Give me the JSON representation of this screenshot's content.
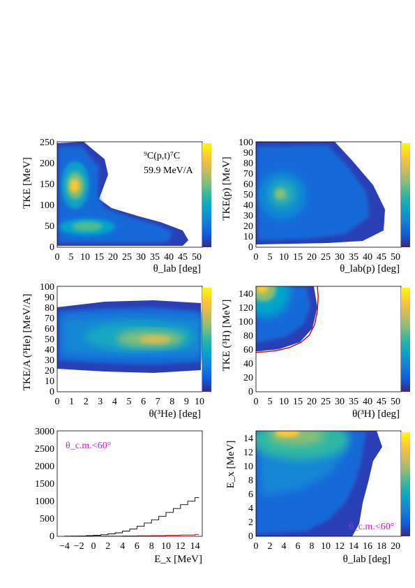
{
  "chart_data": [
    {
      "type": "heatmap",
      "panel": "a",
      "xlabel": "θ_lab [deg]",
      "ylabel": "TKE [MeV]",
      "xlim": [
        0,
        52
      ],
      "ylim": [
        0,
        250
      ],
      "x_ticks": [
        "0",
        "5",
        "10",
        "15",
        "20",
        "25",
        "30",
        "35",
        "40",
        "45",
        "50"
      ],
      "y_ticks": [
        "0",
        "50",
        "100",
        "150",
        "200",
        "250"
      ],
      "annotation_reaction": "⁹C(p,t)⁷C",
      "annotation_energy": "59.9 MeV/A",
      "colorbar": true,
      "hotspots": [
        {
          "x": 6,
          "y": 145,
          "intensity": 1.0
        },
        {
          "x": 10,
          "y": 48,
          "intensity": 0.8
        }
      ]
    },
    {
      "type": "heatmap",
      "panel": "b",
      "xlabel": "θ_lab(p) [deg]",
      "ylabel": "TKE(p) [MeV]",
      "xlim": [
        0,
        52
      ],
      "ylim": [
        0,
        100
      ],
      "x_ticks": [
        "0",
        "5",
        "10",
        "15",
        "20",
        "25",
        "30",
        "35",
        "40",
        "45",
        "50"
      ],
      "y_ticks": [
        "0",
        "10",
        "20",
        "30",
        "40",
        "50",
        "60",
        "70",
        "80",
        "90",
        "100"
      ],
      "colorbar": true,
      "hotspots": [
        {
          "x": 8,
          "y": 50,
          "intensity": 1.0
        }
      ]
    },
    {
      "type": "heatmap",
      "panel": "c",
      "xlabel": "θ(³He) [deg]",
      "ylabel": "TKE/A (³He) [MeV/A]",
      "xlim": [
        0,
        10
      ],
      "ylim": [
        0,
        100
      ],
      "x_ticks": [
        "0",
        "1",
        "2",
        "3",
        "4",
        "5",
        "6",
        "7",
        "8",
        "9",
        "10"
      ],
      "y_ticks": [
        "0",
        "10",
        "20",
        "30",
        "40",
        "50",
        "60",
        "70",
        "80",
        "90",
        "100"
      ],
      "colorbar": true,
      "hotspots": [
        {
          "x": 6.5,
          "y": 50,
          "intensity": 1.0
        }
      ]
    },
    {
      "type": "heatmap",
      "panel": "d",
      "xlabel": "θ(³H) [deg]",
      "ylabel": "TKE (³H) [MeV]",
      "xlim": [
        0,
        52
      ],
      "ylim": [
        0,
        150
      ],
      "x_ticks": [
        "0",
        "5",
        "10",
        "15",
        "20",
        "25",
        "30",
        "35",
        "40",
        "45",
        "50"
      ],
      "y_ticks": [
        "0",
        "20",
        "40",
        "60",
        "80",
        "100",
        "120",
        "140"
      ],
      "colorbar": true,
      "hotspots": [
        {
          "x": 3,
          "y": 145,
          "intensity": 1.0
        }
      ],
      "kinematic_curve": [
        [
          0,
          56
        ],
        [
          4,
          57
        ],
        [
          8,
          59
        ],
        [
          12,
          63
        ],
        [
          16,
          70
        ],
        [
          19,
          80
        ],
        [
          21,
          95
        ],
        [
          22,
          115
        ],
        [
          22.3,
          135
        ],
        [
          22,
          150
        ]
      ]
    },
    {
      "type": "line",
      "panel": "e",
      "xlabel": "E_x [MeV]",
      "ylabel": "",
      "xlim": [
        -5,
        15
      ],
      "ylim": [
        0,
        3000
      ],
      "x_ticks": [
        "−4",
        "−2",
        "0",
        "2",
        "4",
        "6",
        "8",
        "10",
        "12",
        "14"
      ],
      "y_ticks": [
        "0",
        "500",
        "1000",
        "1500",
        "2000",
        "2500",
        "3000"
      ],
      "annotation": "θ_c.m.<60°",
      "series": [
        {
          "color": "#000000",
          "x": [
            -4,
            -3,
            -2,
            -1,
            0,
            1,
            2,
            3,
            4,
            5,
            6,
            7,
            8,
            9,
            10,
            11,
            12,
            13,
            14,
            14.5
          ],
          "y": [
            5,
            8,
            12,
            20,
            30,
            45,
            70,
            100,
            150,
            210,
            290,
            380,
            470,
            570,
            680,
            790,
            900,
            1000,
            1100,
            1090
          ]
        },
        {
          "color": "#cc0000",
          "x": [
            -4,
            -2,
            0,
            2,
            4,
            6,
            8,
            10,
            12,
            14,
            14.5
          ],
          "y": [
            1,
            2,
            4,
            6,
            10,
            14,
            20,
            28,
            38,
            55,
            60
          ]
        }
      ]
    },
    {
      "type": "heatmap",
      "panel": "f",
      "xlabel": "θ_lab [deg]",
      "ylabel": "E_x [MeV]",
      "xlim": [
        0,
        21
      ],
      "ylim": [
        0,
        15
      ],
      "x_ticks": [
        "0",
        "2",
        "4",
        "6",
        "8",
        "10",
        "12",
        "14",
        "16",
        "18",
        "20"
      ],
      "y_ticks": [
        "0",
        "2",
        "4",
        "6",
        "8",
        "10",
        "12",
        "14"
      ],
      "annotation": "θ_c.m.<60°",
      "colorbar": true,
      "hotspots": [
        {
          "x": 5,
          "y": 14.5,
          "intensity": 1.0
        }
      ]
    }
  ],
  "colors": {
    "viridis": [
      "#352a87",
      "#0f5cdd",
      "#1481d6",
      "#06a4ca",
      "#2eb7a4",
      "#87bf77",
      "#d1bb59",
      "#fec832",
      "#f9fb0e"
    ],
    "annotation_magenta": "#e010e0",
    "curve_red": "#cc0000"
  }
}
